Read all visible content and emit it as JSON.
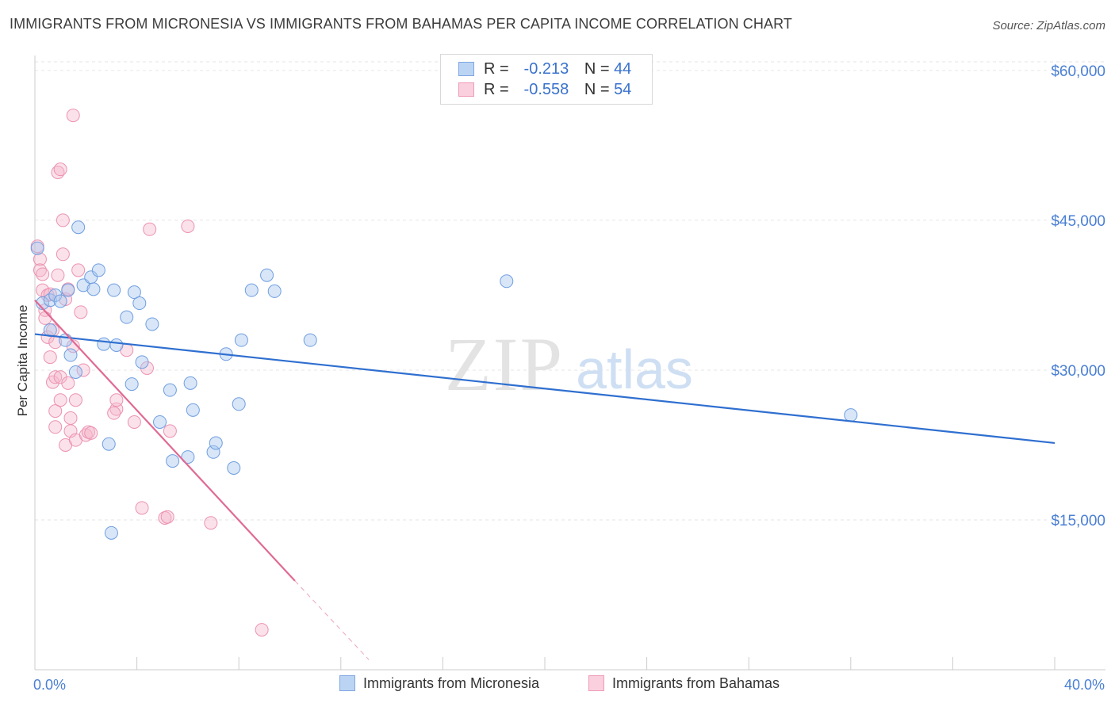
{
  "title": "IMMIGRANTS FROM MICRONESIA VS IMMIGRANTS FROM BAHAMAS PER CAPITA INCOME CORRELATION CHART",
  "source": "Source: ZipAtlas.com",
  "legend": {
    "row1": {
      "r_label": "R =",
      "r_value": "-0.213",
      "n_label": "N =",
      "n_value": "44"
    },
    "row2": {
      "r_label": "R =",
      "r_value": "-0.558",
      "n_label": "N =",
      "n_value": "54"
    }
  },
  "bottom_legend": {
    "item1": "Immigrants from Micronesia",
    "item2": "Immigrants from Bahamas"
  },
  "colors": {
    "micronesia": "#a9c8f0",
    "micronesia_line": "#2f6fd0",
    "bahamas": "#f6b6cb",
    "bahamas_line": "#e06a94"
  },
  "chart_data": {
    "type": "scatter",
    "xlabel": "",
    "ylabel": "Per Capita Income",
    "x_tick_labels": [
      "0.0%",
      "40.0%"
    ],
    "y_tick_labels": [
      "$15,000",
      "$30,000",
      "$45,000",
      "$60,000"
    ],
    "y_ticks": [
      15000,
      30000,
      45000,
      60000
    ],
    "xlim": [
      0,
      40
    ],
    "ylim": [
      0,
      61500
    ],
    "grid": true,
    "legend_position": "top-center",
    "series": [
      {
        "name": "Immigrants from Micronesia",
        "color": "#a9c8f0",
        "r": -0.213,
        "n": 44,
        "trend": {
          "x": [
            0,
            40
          ],
          "y": [
            33600,
            22700
          ]
        },
        "points": [
          [
            0.1,
            42200
          ],
          [
            0.3,
            36700
          ],
          [
            0.6,
            37000
          ],
          [
            0.8,
            37500
          ],
          [
            1.0,
            36900
          ],
          [
            1.3,
            38000
          ],
          [
            0.6,
            34000
          ],
          [
            1.2,
            33000
          ],
          [
            1.4,
            31500
          ],
          [
            1.6,
            29800
          ],
          [
            1.7,
            44300
          ],
          [
            1.9,
            38500
          ],
          [
            2.2,
            39300
          ],
          [
            2.3,
            38100
          ],
          [
            2.5,
            40000
          ],
          [
            2.7,
            32600
          ],
          [
            2.9,
            22600
          ],
          [
            3.0,
            13700
          ],
          [
            3.1,
            38000
          ],
          [
            3.2,
            32500
          ],
          [
            3.6,
            35300
          ],
          [
            3.8,
            28600
          ],
          [
            3.9,
            37800
          ],
          [
            4.1,
            36700
          ],
          [
            4.2,
            30800
          ],
          [
            4.6,
            34600
          ],
          [
            4.9,
            24800
          ],
          [
            5.3,
            28000
          ],
          [
            5.4,
            20900
          ],
          [
            6.0,
            21300
          ],
          [
            6.2,
            26000
          ],
          [
            6.1,
            28700
          ],
          [
            7.0,
            21800
          ],
          [
            7.1,
            22700
          ],
          [
            7.5,
            31600
          ],
          [
            7.8,
            20200
          ],
          [
            8.0,
            26600
          ],
          [
            8.1,
            33000
          ],
          [
            8.5,
            38000
          ],
          [
            9.1,
            39500
          ],
          [
            9.4,
            37900
          ],
          [
            10.8,
            33000
          ],
          [
            18.5,
            38900
          ],
          [
            32.0,
            25500
          ]
        ]
      },
      {
        "name": "Immigrants from Bahamas",
        "color": "#f6b6cb",
        "r": -0.558,
        "n": 54,
        "trend": {
          "x": [
            0,
            10.2
          ],
          "y": [
            37000,
            8900
          ]
        },
        "trend_dashed": {
          "x": [
            10.2,
            13.1
          ],
          "y": [
            8900,
            1000
          ]
        },
        "points": [
          [
            0.1,
            42400
          ],
          [
            0.2,
            41100
          ],
          [
            0.2,
            40000
          ],
          [
            0.3,
            39600
          ],
          [
            0.3,
            38000
          ],
          [
            0.4,
            36000
          ],
          [
            0.4,
            35200
          ],
          [
            0.5,
            37500
          ],
          [
            0.5,
            33300
          ],
          [
            0.6,
            37600
          ],
          [
            0.6,
            31300
          ],
          [
            0.7,
            34000
          ],
          [
            0.7,
            28800
          ],
          [
            0.8,
            32800
          ],
          [
            0.8,
            29300
          ],
          [
            0.8,
            24300
          ],
          [
            0.8,
            25900
          ],
          [
            0.9,
            39500
          ],
          [
            0.9,
            49800
          ],
          [
            1.0,
            29300
          ],
          [
            1.0,
            50100
          ],
          [
            1.1,
            41600
          ],
          [
            1.1,
            45000
          ],
          [
            1.2,
            37100
          ],
          [
            1.2,
            22500
          ],
          [
            1.3,
            38100
          ],
          [
            1.3,
            28700
          ],
          [
            1.4,
            25200
          ],
          [
            1.4,
            23900
          ],
          [
            1.5,
            32400
          ],
          [
            1.5,
            55500
          ],
          [
            1.6,
            27000
          ],
          [
            1.6,
            23000
          ],
          [
            1.7,
            40000
          ],
          [
            1.8,
            35800
          ],
          [
            1.9,
            30000
          ],
          [
            2.0,
            23500
          ],
          [
            2.1,
            23800
          ],
          [
            2.2,
            23700
          ],
          [
            3.2,
            26100
          ],
          [
            3.1,
            25700
          ],
          [
            3.2,
            27000
          ],
          [
            3.6,
            32000
          ],
          [
            3.9,
            24800
          ],
          [
            4.2,
            16200
          ],
          [
            4.4,
            30200
          ],
          [
            4.5,
            44100
          ],
          [
            5.1,
            15200
          ],
          [
            5.2,
            15300
          ],
          [
            5.3,
            23900
          ],
          [
            6.0,
            44400
          ],
          [
            6.9,
            14700
          ],
          [
            8.9,
            4000
          ],
          [
            1.0,
            27000
          ]
        ]
      }
    ]
  }
}
